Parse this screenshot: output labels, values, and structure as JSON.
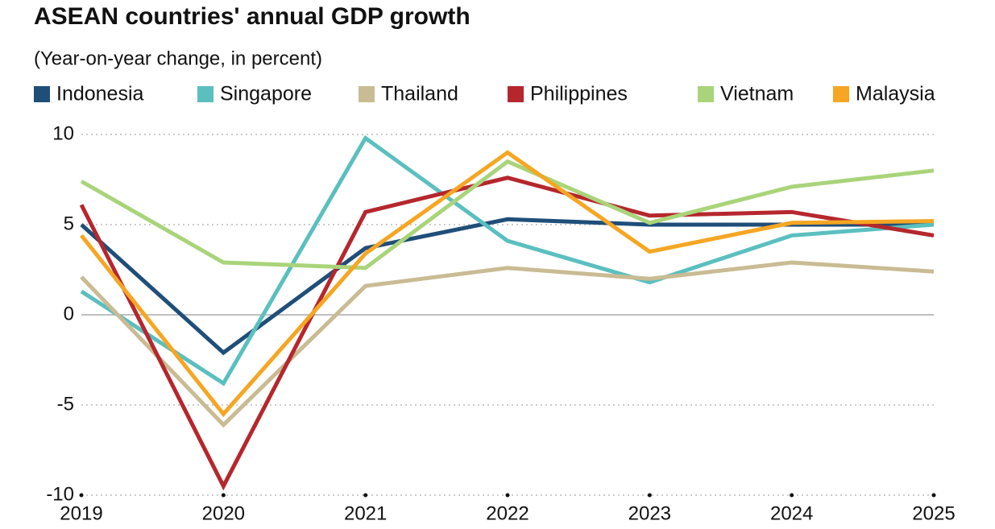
{
  "chart_data": {
    "type": "line",
    "title": "ASEAN countries' annual GDP growth",
    "subtitle": "(Year-on-year change, in percent)",
    "x": [
      2019,
      2020,
      2021,
      2022,
      2023,
      2024,
      2025
    ],
    "xlim": [
      2019,
      2025
    ],
    "xticks": [
      2019,
      2020,
      2021,
      2022,
      2023,
      2024,
      2025
    ],
    "ylim": [
      -10,
      10
    ],
    "yticks": [
      -10,
      -5,
      0,
      5,
      10
    ],
    "grid": true,
    "series": [
      {
        "name": "Indonesia",
        "color": "#1f4e79",
        "values": [
          5.0,
          -2.1,
          3.7,
          5.3,
          5.0,
          5.0,
          5.0
        ]
      },
      {
        "name": "Singapore",
        "color": "#5bbfbf",
        "values": [
          1.3,
          -3.8,
          9.8,
          4.1,
          1.8,
          4.4,
          5.0
        ]
      },
      {
        "name": "Thailand",
        "color": "#c9bb93",
        "values": [
          2.1,
          -6.1,
          1.6,
          2.6,
          2.0,
          2.9,
          2.4
        ]
      },
      {
        "name": "Philippines",
        "color": "#b5272d",
        "values": [
          6.1,
          -9.5,
          5.7,
          7.6,
          5.5,
          5.7,
          4.4
        ]
      },
      {
        "name": "Vietnam",
        "color": "#a9d47a",
        "values": [
          7.4,
          2.9,
          2.6,
          8.5,
          5.1,
          7.1,
          8.0
        ]
      },
      {
        "name": "Malaysia",
        "color": "#f5a623",
        "values": [
          4.4,
          -5.5,
          3.4,
          9.0,
          3.5,
          5.1,
          5.2
        ]
      }
    ]
  }
}
